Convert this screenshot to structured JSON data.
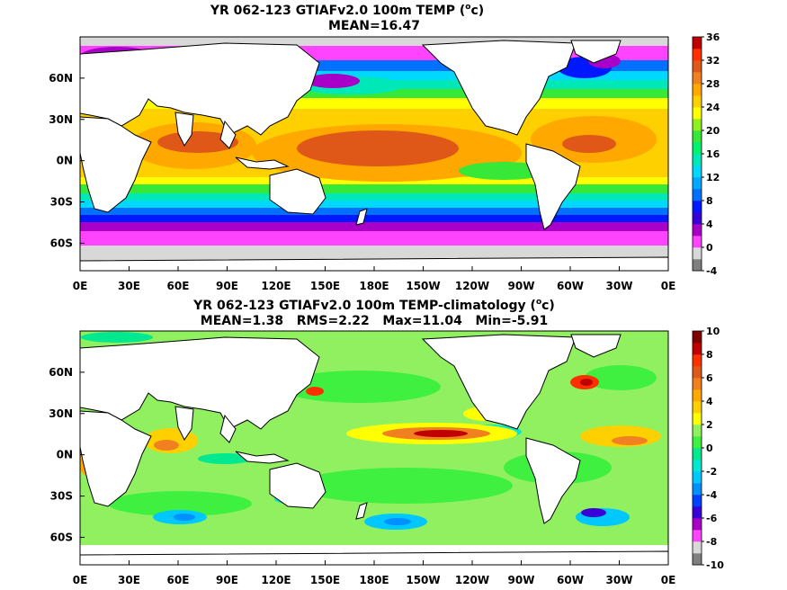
{
  "chart_data": [
    {
      "type": "heatmap",
      "title": "YR 062-123 GTIAFv2.0 100m TEMP (",
      "title_unit_sup": "o",
      "title_unit": "c)",
      "subtitle": "MEAN=16.47",
      "x_ticks": [
        "0E",
        "30E",
        "60E",
        "90E",
        "120E",
        "150E",
        "180E",
        "150W",
        "120W",
        "90W",
        "60W",
        "30W",
        "0E"
      ],
      "y_ticks": [
        "60N",
        "30N",
        "0N",
        "30S",
        "60S"
      ],
      "xlim": [
        0,
        360
      ],
      "ylim": [
        -80,
        90
      ],
      "colorbar": {
        "ticks": [
          "36",
          "32",
          "28",
          "24",
          "20",
          "16",
          "12",
          "8",
          "4",
          "0",
          "-4"
        ],
        "levels": [
          -4,
          -2,
          0,
          2,
          4,
          6,
          8,
          10,
          12,
          14,
          16,
          18,
          20,
          22,
          24,
          26,
          28,
          30,
          32,
          34,
          36
        ],
        "colors": [
          "#7f7f7f",
          "#d8d8d8",
          "#ff44ff",
          "#a800c8",
          "#3a00d8",
          "#0018ff",
          "#0070ff",
          "#00a8ff",
          "#00d8ff",
          "#00e8b8",
          "#00f070",
          "#38e838",
          "#90f020",
          "#ffff00",
          "#ffd000",
          "#ffa800",
          "#f08020",
          "#e05818",
          "#ff3000",
          "#c00000"
        ]
      },
      "field_description": "Upper-ocean 100m temperature; warm pool 28-30 in western Pacific and Indian Ocean, cooling to 0 and below at high latitudes"
    },
    {
      "type": "heatmap",
      "title": "YR 062-123 GTIAFv2.0 100m TEMP-climatology (",
      "title_unit_sup": "o",
      "title_unit": "c)",
      "subtitle": "MEAN=1.38   RMS=2.22   Max=11.04   Min=-5.91",
      "x_ticks": [
        "0E",
        "30E",
        "60E",
        "90E",
        "120E",
        "150E",
        "180E",
        "150W",
        "120W",
        "90W",
        "60W",
        "30W",
        "0E"
      ],
      "y_ticks": [
        "60N",
        "30N",
        "0N",
        "30S",
        "60S"
      ],
      "xlim": [
        0,
        360
      ],
      "ylim": [
        -80,
        90
      ],
      "colorbar": {
        "ticks": [
          "10",
          "8",
          "6",
          "4",
          "2",
          "0",
          "-2",
          "-4",
          "-6",
          "-8",
          "-10"
        ],
        "levels": [
          -10,
          -9,
          -8,
          -7,
          -6,
          -5,
          -4,
          -3,
          -2,
          -1,
          0,
          1,
          2,
          3,
          4,
          5,
          6,
          7,
          8,
          9,
          10
        ],
        "colors": [
          "#7f7f7f",
          "#d8d8d8",
          "#ff44ff",
          "#a800c8",
          "#3a00d8",
          "#0040ff",
          "#0090ff",
          "#00c8ff",
          "#00e8d0",
          "#00e890",
          "#40f040",
          "#90f060",
          "#ffff00",
          "#ffd000",
          "#ffa800",
          "#f08020",
          "#e05818",
          "#ff3000",
          "#c00000",
          "#800000"
        ]
      },
      "field_description": "Temperature anomaly vs climatology; mostly 0 to 1, warm anomaly 6-10 in equatorial central Pacific and Gulf Stream, cold anomalies -4 to -6 in Southern Ocean"
    }
  ]
}
